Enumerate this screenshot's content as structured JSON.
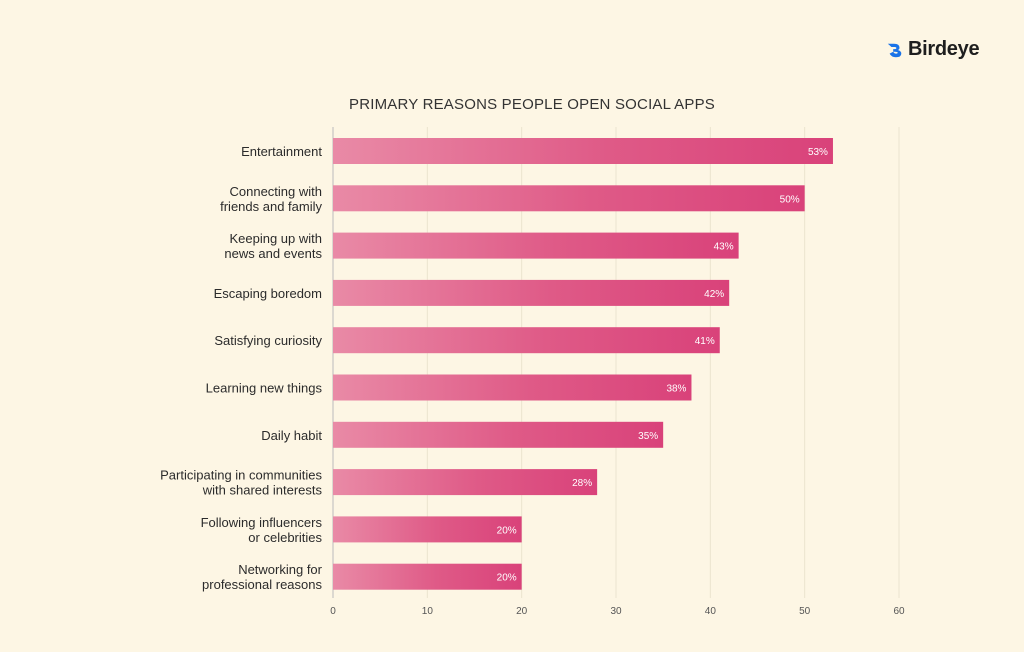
{
  "brand": {
    "name": "Birdeye",
    "color": "#1a73e8"
  },
  "chart_data": {
    "type": "bar",
    "orientation": "horizontal",
    "title": "PRIMARY REASONS PEOPLE OPEN SOCIAL APPS",
    "categories": [
      [
        "Entertainment"
      ],
      [
        "Connecting with",
        "friends and family"
      ],
      [
        "Keeping up with",
        "news and events"
      ],
      [
        "Escaping boredom"
      ],
      [
        "Satisfying curiosity"
      ],
      [
        "Learning new things"
      ],
      [
        "Daily habit"
      ],
      [
        "Participating in communities",
        "with shared interests"
      ],
      [
        "Following influencers",
        "or celebrities"
      ],
      [
        "Networking for",
        "professional reasons"
      ]
    ],
    "values": [
      53,
      50,
      43,
      42,
      41,
      38,
      35,
      28,
      20,
      20
    ],
    "value_labels": [
      "53%",
      "50%",
      "43%",
      "42%",
      "41%",
      "38%",
      "35%",
      "28%",
      "20%",
      "20%"
    ],
    "xlim": [
      0,
      60
    ],
    "xticks": [
      0,
      10,
      20,
      30,
      40,
      50,
      60
    ],
    "xlabel": "",
    "ylabel": "",
    "grid": true,
    "bar_color_start": "#e98aa6",
    "bar_color_end": "#d9427a"
  }
}
